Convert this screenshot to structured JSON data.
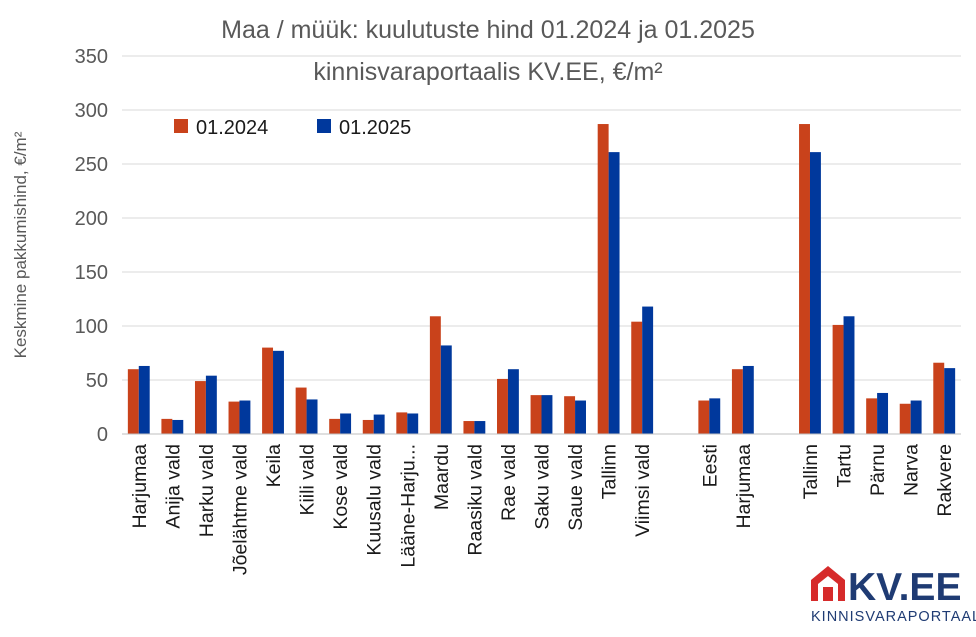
{
  "chart_data": {
    "type": "bar",
    "title_lines": [
      "Maa / müük: kuulutuste hind 01.2024 ja 01.2025",
      "kinnisvaraportaalis KV.EE, €/m²"
    ],
    "ylabel": "Keskmine pakkumishind, €/m²",
    "xlabel": "",
    "ylim": [
      0,
      350
    ],
    "yticks": [
      0,
      50,
      100,
      150,
      200,
      250,
      300,
      350
    ],
    "grid": true,
    "legend_position": "top-left",
    "categories": [
      "Harjumaa",
      "Anija vald",
      "Harku vald",
      "Jõelähtme vald",
      "Keila",
      "Kiili vald",
      "Kose vald",
      "Kuusalu vald",
      "Lääne-Harju...",
      "Maardu",
      "Raasiku vald",
      "Rae vald",
      "Saku vald",
      "Saue vald",
      "Tallinn",
      "Viimsi vald",
      "",
      "Eesti",
      "Harjumaa",
      "",
      "Tallinn",
      "Tartu",
      "Pärnu",
      "Narva",
      "Rakvere"
    ],
    "series": [
      {
        "name": "01.2024",
        "color": "#c9421b",
        "values": [
          60,
          14,
          49,
          30,
          80,
          43,
          14,
          13,
          20,
          109,
          12,
          51,
          36,
          35,
          287,
          104,
          null,
          31,
          60,
          null,
          287,
          101,
          33,
          28,
          66
        ]
      },
      {
        "name": "01.2025",
        "color": "#00389c",
        "values": [
          63,
          13,
          54,
          31,
          77,
          32,
          19,
          18,
          19,
          82,
          12,
          60,
          36,
          31,
          261,
          118,
          null,
          33,
          63,
          null,
          261,
          109,
          38,
          31,
          61
        ]
      }
    ]
  },
  "logo": {
    "text": "KV.EE",
    "subtext": "KINNISVARAPORTAAL",
    "brand_color": "#d62b2b",
    "text_color": "#1f3b73"
  }
}
